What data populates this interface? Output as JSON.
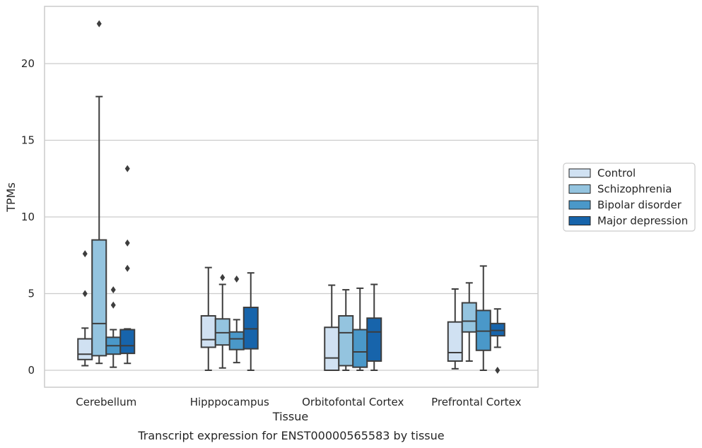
{
  "chart_data": {
    "type": "box",
    "title": "",
    "caption": "Transcript expression for ENST00000565583 by tissue",
    "xlabel": "Tissue",
    "ylabel": "TPMs",
    "ylim": [
      -1.1,
      23.7
    ],
    "yticks": [
      0,
      5,
      10,
      15,
      20
    ],
    "grid": "horizontal",
    "legend_position": "right",
    "categories": [
      "Cerebellum",
      "Hipppocampus",
      "Orbitofontal Cortex",
      "Prefrontal Cortex"
    ],
    "series": [
      {
        "name": "Control",
        "color": "#d0e1f2",
        "boxes": [
          {
            "whisker_low": 0.3,
            "q1": 0.7,
            "median": 1.05,
            "q3": 2.05,
            "whisker_high": 2.75,
            "outliers": [
              5.0,
              7.6
            ]
          },
          {
            "whisker_low": 0.0,
            "q1": 1.5,
            "median": 2.0,
            "q3": 3.55,
            "whisker_high": 6.7,
            "outliers": []
          },
          {
            "whisker_low": 0.0,
            "q1": 0.0,
            "median": 0.8,
            "q3": 2.8,
            "whisker_high": 5.55,
            "outliers": []
          },
          {
            "whisker_low": 0.1,
            "q1": 0.6,
            "median": 1.15,
            "q3": 3.15,
            "whisker_high": 5.3,
            "outliers": []
          }
        ]
      },
      {
        "name": "Schizophrenia",
        "color": "#94c4df",
        "boxes": [
          {
            "whisker_low": 0.45,
            "q1": 0.95,
            "median": 3.05,
            "q3": 8.5,
            "whisker_high": 17.85,
            "outliers": [
              22.6
            ]
          },
          {
            "whisker_low": 0.15,
            "q1": 1.65,
            "median": 2.45,
            "q3": 3.35,
            "whisker_high": 5.6,
            "outliers": [
              6.05
            ]
          },
          {
            "whisker_low": 0.0,
            "q1": 0.3,
            "median": 2.45,
            "q3": 3.55,
            "whisker_high": 5.25,
            "outliers": []
          },
          {
            "whisker_low": 0.6,
            "q1": 2.5,
            "median": 3.2,
            "q3": 4.4,
            "whisker_high": 5.7,
            "outliers": []
          }
        ]
      },
      {
        "name": "Bipolar disorder",
        "color": "#4a98c9",
        "boxes": [
          {
            "whisker_low": 0.2,
            "q1": 1.05,
            "median": 1.6,
            "q3": 2.15,
            "whisker_high": 2.65,
            "outliers": [
              4.25,
              5.25
            ]
          },
          {
            "whisker_low": 0.5,
            "q1": 1.35,
            "median": 2.05,
            "q3": 2.5,
            "whisker_high": 3.3,
            "outliers": [
              5.95
            ]
          },
          {
            "whisker_low": 0.0,
            "q1": 0.2,
            "median": 1.2,
            "q3": 2.65,
            "whisker_high": 5.35,
            "outliers": []
          },
          {
            "whisker_low": 0.0,
            "q1": 1.3,
            "median": 2.55,
            "q3": 3.9,
            "whisker_high": 6.8,
            "outliers": []
          }
        ]
      },
      {
        "name": "Major depression",
        "color": "#1764ab",
        "boxes": [
          {
            "whisker_low": 0.45,
            "q1": 1.1,
            "median": 1.6,
            "q3": 2.65,
            "whisker_high": 2.7,
            "outliers": [
              6.65,
              8.3,
              13.15
            ]
          },
          {
            "whisker_low": 0.0,
            "q1": 1.4,
            "median": 2.7,
            "q3": 4.1,
            "whisker_high": 6.35,
            "outliers": []
          },
          {
            "whisker_low": 0.0,
            "q1": 0.6,
            "median": 2.5,
            "q3": 3.4,
            "whisker_high": 5.6,
            "outliers": []
          },
          {
            "whisker_low": 1.5,
            "q1": 2.25,
            "median": 2.6,
            "q3": 3.05,
            "whisker_high": 4.0,
            "outliers": [
              0.0
            ]
          }
        ]
      }
    ]
  }
}
